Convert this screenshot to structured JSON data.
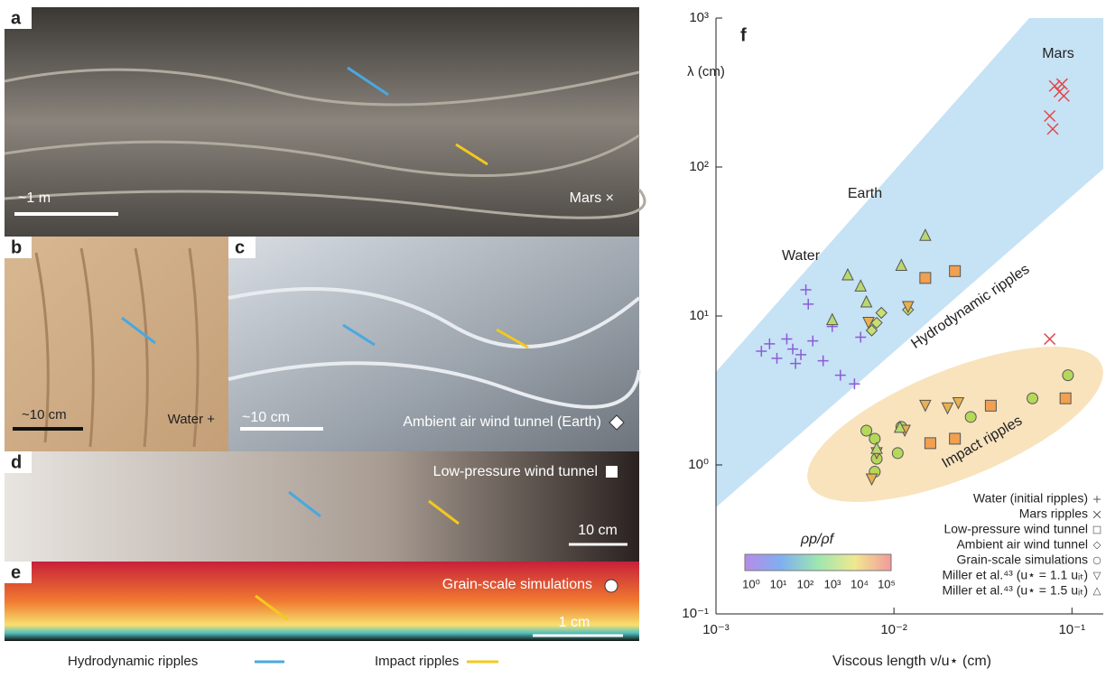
{
  "panels": [
    {
      "label": "a",
      "scale": "~1 m",
      "caption": "Mars ×"
    },
    {
      "label": "b",
      "scale": "~10 cm",
      "caption": "Water +"
    },
    {
      "label": "c",
      "scale": "~10 cm",
      "caption": "Ambient air wind tunnel (Earth)"
    },
    {
      "label": "d",
      "scale": "10 cm",
      "caption": "Low-pressure wind tunnel"
    },
    {
      "label": "e",
      "scale": "1 cm",
      "caption": "Grain-scale simulations"
    }
  ],
  "arrow_legend": [
    "Hydrodynamic ripples",
    "Impact ripples"
  ],
  "chart_data": {
    "type": "scatter",
    "label": "f",
    "xlabel": "Viscous length ν/u⋆ (cm)",
    "ylabel": "λ (cm)",
    "log_x": true,
    "log_y": true,
    "xlim": [
      0.001,
      0.15
    ],
    "ylim": [
      0.1,
      1000
    ],
    "xticks": [
      {
        "value": 0.001,
        "label": "10⁻³"
      },
      {
        "value": 0.01,
        "label": "10⁻²"
      },
      {
        "value": 0.1,
        "label": "10⁻¹"
      }
    ],
    "yticks": [
      {
        "value": 0.1,
        "label": "10⁻¹"
      },
      {
        "value": 1,
        "label": "10⁰"
      },
      {
        "value": 10,
        "label": "10¹"
      },
      {
        "value": 100,
        "label": "10²"
      },
      {
        "value": 1000,
        "label": "10³"
      }
    ],
    "annotations": [
      "Mars",
      "Earth",
      "Water",
      "Hydrodynamic ripples",
      "Impact ripples"
    ],
    "colorbar": {
      "label": "ρp/ρf",
      "ticks": [
        "10⁰",
        "10¹",
        "10²",
        "10³",
        "10⁴",
        "10⁵"
      ]
    },
    "series": [
      {
        "name": "Water (initial ripples)",
        "marker": "+",
        "color": "#8a5cd6",
        "x": [
          0.0018,
          0.002,
          0.0022,
          0.0025,
          0.0028,
          0.003,
          0.0032,
          0.0035,
          0.004,
          0.0045,
          0.005,
          0.006,
          0.0065,
          0.0033,
          0.0027
        ],
        "y": [
          5.8,
          6.5,
          5.2,
          7,
          4.8,
          5.5,
          15,
          6.8,
          5,
          8.5,
          4,
          3.5,
          7.2,
          12,
          6
        ]
      },
      {
        "name": "Mars ripples",
        "marker": "x",
        "color": "#e04a4a",
        "x": [
          0.08,
          0.085,
          0.09,
          0.075,
          0.078,
          0.088,
          0.075
        ],
        "y": [
          350,
          320,
          300,
          220,
          180,
          360,
          7
        ]
      },
      {
        "name": "Low-pressure wind tunnel",
        "marker": "s",
        "color": "#f0a050",
        "x": [
          0.015,
          0.022,
          0.016,
          0.022,
          0.035,
          0.092
        ],
        "y": [
          18,
          20,
          1.4,
          1.5,
          2.5,
          2.8
        ]
      },
      {
        "name": "Ambient air wind tunnel",
        "marker": "d",
        "color": "#c8e070",
        "x": [
          0.008,
          0.0085,
          0.012,
          0.0075
        ],
        "y": [
          9,
          10.5,
          11,
          8
        ]
      },
      {
        "name": "Grain-scale simulations",
        "marker": "o",
        "color": "#b5d85a",
        "x": [
          0.007,
          0.0078,
          0.008,
          0.0078,
          0.0105,
          0.011,
          0.027,
          0.06,
          0.095
        ],
        "y": [
          1.7,
          1.5,
          1.1,
          0.9,
          1.2,
          1.8,
          2.1,
          2.8,
          4
        ]
      },
      {
        "name": "Miller et al.⁴³ (u⋆ = 1.1 uᵢₜ)",
        "marker": "v",
        "color": "#e8b050",
        "x": [
          0.0075,
          0.008,
          0.0115,
          0.02,
          0.015,
          0.023,
          0.0072,
          0.012
        ],
        "y": [
          0.8,
          1.2,
          1.7,
          2.4,
          2.5,
          2.6,
          9,
          11.5
        ]
      },
      {
        "name": "Miller et al.⁴³ (u⋆ = 1.5 uᵢₜ)",
        "marker": "^",
        "color": "#b8d870",
        "x": [
          0.0055,
          0.0065,
          0.0045,
          0.007,
          0.008,
          0.011,
          0.015,
          0.0108
        ],
        "y": [
          19,
          16,
          9.5,
          12.5,
          1.3,
          22,
          35,
          1.8
        ]
      }
    ]
  }
}
